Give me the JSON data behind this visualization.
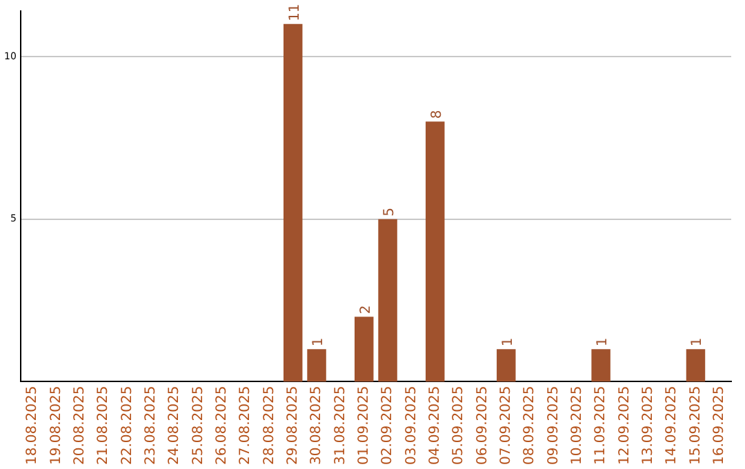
{
  "chart_data": {
    "type": "bar",
    "categories": [
      "18.08.2025",
      "19.08.2025",
      "20.08.2025",
      "21.08.2025",
      "22.08.2025",
      "23.08.2025",
      "24.08.2025",
      "25.08.2025",
      "26.08.2025",
      "27.08.2025",
      "28.08.2025",
      "29.08.2025",
      "30.08.2025",
      "31.08.2025",
      "01.09.2025",
      "02.09.2025",
      "03.09.2025",
      "04.09.2025",
      "05.09.2025",
      "06.09.2025",
      "07.09.2025",
      "08.09.2025",
      "09.09.2025",
      "10.09.2025",
      "11.09.2025",
      "12.09.2025",
      "13.09.2025",
      "14.09.2025",
      "15.09.2025",
      "16.09.2025"
    ],
    "values": [
      0,
      0,
      0,
      0,
      0,
      0,
      0,
      0,
      0,
      0,
      0,
      11,
      1,
      0,
      2,
      5,
      0,
      8,
      0,
      0,
      1,
      0,
      0,
      0,
      1,
      0,
      0,
      0,
      1,
      0
    ],
    "value_labels": [
      null,
      null,
      null,
      null,
      null,
      null,
      null,
      null,
      null,
      null,
      null,
      "11",
      "1",
      null,
      "2",
      "5",
      null,
      "8",
      null,
      null,
      "1",
      null,
      null,
      null,
      "1",
      null,
      null,
      null,
      "1",
      null
    ],
    "color": "#a0522d",
    "ylim": [
      0,
      11.4
    ],
    "yticks": [
      5,
      10
    ],
    "grid": "y",
    "legend": false
  }
}
